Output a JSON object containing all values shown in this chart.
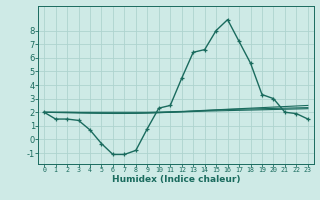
{
  "xlabel": "Humidex (Indice chaleur)",
  "bg_color": "#ceeae6",
  "grid_color": "#aed4cf",
  "line_color": "#1a6b5e",
  "x_values": [
    0,
    1,
    2,
    3,
    4,
    5,
    6,
    7,
    8,
    9,
    10,
    11,
    12,
    13,
    14,
    15,
    16,
    17,
    18,
    19,
    20,
    21,
    22,
    23
  ],
  "curve1": [
    2.0,
    1.5,
    1.5,
    1.4,
    0.7,
    -0.3,
    -1.1,
    -1.1,
    -0.8,
    0.8,
    2.3,
    2.5,
    4.5,
    6.4,
    6.6,
    8.0,
    8.8,
    7.2,
    5.6,
    3.3,
    3.0,
    2.0,
    1.9,
    1.5
  ],
  "line2": [
    2.0,
    2.0,
    2.0,
    1.98,
    1.96,
    1.94,
    1.93,
    1.93,
    1.93,
    1.95,
    1.97,
    1.99,
    2.02,
    2.05,
    2.08,
    2.1,
    2.12,
    2.14,
    2.16,
    2.18,
    2.2,
    2.22,
    2.24,
    2.26
  ],
  "line3": [
    2.0,
    1.98,
    1.96,
    1.94,
    1.93,
    1.92,
    1.91,
    1.91,
    1.92,
    1.94,
    1.97,
    2.0,
    2.04,
    2.08,
    2.12,
    2.16,
    2.2,
    2.22,
    2.24,
    2.26,
    2.28,
    2.3,
    2.32,
    2.34
  ],
  "line4": [
    2.0,
    2.0,
    2.0,
    2.0,
    2.0,
    2.0,
    2.0,
    2.0,
    2.0,
    2.0,
    2.02,
    2.04,
    2.06,
    2.1,
    2.14,
    2.18,
    2.22,
    2.26,
    2.3,
    2.34,
    2.38,
    2.42,
    2.46,
    2.5
  ],
  "ylim": [
    -1.8,
    9.8
  ],
  "xlim": [
    -0.5,
    23.5
  ],
  "yticks": [
    -1,
    0,
    1,
    2,
    3,
    4,
    5,
    6,
    7,
    8
  ],
  "xticks": [
    0,
    1,
    2,
    3,
    4,
    5,
    6,
    7,
    8,
    9,
    10,
    11,
    12,
    13,
    14,
    15,
    16,
    17,
    18,
    19,
    20,
    21,
    22,
    23
  ],
  "xlabel_fontsize": 6.5,
  "tick_fontsize_x": 4.8,
  "tick_fontsize_y": 6.0
}
